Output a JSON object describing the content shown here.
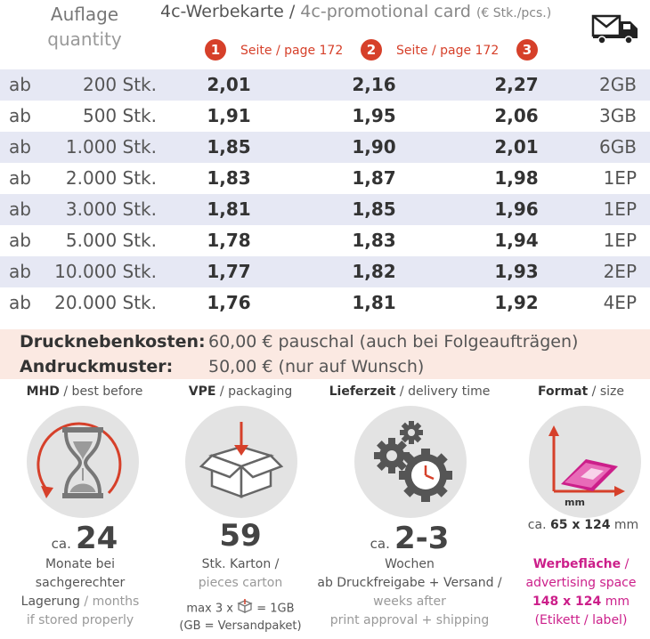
{
  "header": {
    "quantity_label_de": "Auflage",
    "quantity_label_en": "quantity",
    "product_de": "4c-Werbekarte",
    "product_sep": " / ",
    "product_en": "4c-promotional card",
    "unit_note": "(€ Stk./pcs.)",
    "columns": [
      {
        "badge": "1",
        "page_ref": "Seite / page 172"
      },
      {
        "badge": "2",
        "page_ref": "Seite / page 172"
      },
      {
        "badge": "3",
        "page_ref": ""
      }
    ],
    "truck_icon": "delivery-truck-icon"
  },
  "table": {
    "rows": [
      {
        "prefix": "ab",
        "quantity": "200 Stk.",
        "p1": "2,01",
        "p2": "2,16",
        "p3": "2,27",
        "shipping": "2GB"
      },
      {
        "prefix": "ab",
        "quantity": "500 Stk.",
        "p1": "1,91",
        "p2": "1,95",
        "p3": "2,06",
        "shipping": "3GB"
      },
      {
        "prefix": "ab",
        "quantity": "1.000 Stk.",
        "p1": "1,85",
        "p2": "1,90",
        "p3": "2,01",
        "shipping": "6GB"
      },
      {
        "prefix": "ab",
        "quantity": "2.000 Stk.",
        "p1": "1,83",
        "p2": "1,87",
        "p3": "1,98",
        "shipping": "1EP"
      },
      {
        "prefix": "ab",
        "quantity": "3.000 Stk.",
        "p1": "1,81",
        "p2": "1,85",
        "p3": "1,96",
        "shipping": "1EP"
      },
      {
        "prefix": "ab",
        "quantity": "5.000 Stk.",
        "p1": "1,78",
        "p2": "1,83",
        "p3": "1,94",
        "shipping": "1EP"
      },
      {
        "prefix": "ab",
        "quantity": "10.000 Stk.",
        "p1": "1,77",
        "p2": "1,82",
        "p3": "1,93",
        "shipping": "2EP"
      },
      {
        "prefix": "ab",
        "quantity": "20.000 Stk.",
        "p1": "1,76",
        "p2": "1,81",
        "p3": "1,92",
        "shipping": "4EP"
      }
    ]
  },
  "extras": [
    {
      "label": "Drucknebenkosten:",
      "value": "60,00 € pauschal (auch bei Folgeaufträgen)"
    },
    {
      "label": "Andruckmuster:",
      "value": "50,00 € (nur auf Wunsch)"
    }
  ],
  "sections": {
    "mhd": {
      "title_bold": "MHD",
      "title_rest": " / best before",
      "icon": "hourglass-icon",
      "prefix": "ca.",
      "value": "24",
      "line1": "Monate bei",
      "line2": "sachgerechter",
      "line3_a": "Lagerung",
      "line3_b": " / months",
      "line4": "if stored properly"
    },
    "vpe": {
      "title_bold": "VPE",
      "title_rest": " / packaging",
      "icon": "box-icon",
      "value": "59",
      "line1": "Stk. Karton /",
      "line2": "pieces carton",
      "note_a": "max 3 x",
      "note_b": "= 1GB",
      "note_c": "(GB = Versandpaket)"
    },
    "delivery": {
      "title_bold": "Lieferzeit",
      "title_rest": " / delivery time",
      "icon": "gears-clock-icon",
      "prefix": "ca.",
      "value": "2-3",
      "line1": "Wochen",
      "line2": "ab Druckfreigabe + Versand /",
      "line3": "weeks after",
      "line4": "print approval + shipping"
    },
    "format": {
      "title_bold": "Format",
      "title_rest": " / size",
      "icon": "card-dimension-icon",
      "mm_label": "mm",
      "prefix": "ca.",
      "size": "65 x 124",
      "unit": "mm",
      "adv_bold": "Werbefläche",
      "adv_rest": " /",
      "adv_en": "advertising space",
      "adv_size": "148 x 124",
      "adv_unit": "mm",
      "adv_note": "(Etikett / label)"
    }
  },
  "colors": {
    "accent_red": "#d6402a",
    "accent_pink": "#cc1f8a",
    "row_shade": "#e6e8f4",
    "extras_bg": "#fbe9e2"
  }
}
